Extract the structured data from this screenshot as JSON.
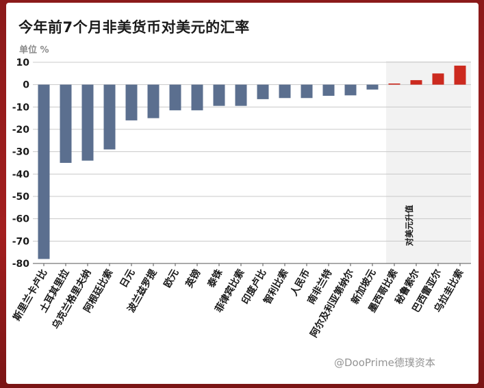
{
  "title": "今年前7个月非美货币对美元的汇率",
  "unit_label": "单位 %",
  "annotation": "对美元升值",
  "watermark": "@DooPrime德璞资本",
  "colors": {
    "negative": "#5b6f8f",
    "positive": "#cc2a1f",
    "highlight_bg": "#f2f2f2",
    "grid": "#c8c8c8",
    "title": "#1a1a1a"
  },
  "chart_data": {
    "type": "bar",
    "title": "今年前7个月非美货币对美元的汇率",
    "ylabel": "单位 %",
    "ylim": [
      -80,
      10
    ],
    "yticks": [
      10,
      0,
      -10,
      -20,
      -30,
      -40,
      -50,
      -60,
      -70,
      -80
    ],
    "grid": true,
    "categories": [
      "斯里兰卡卢比",
      "土耳其里拉",
      "乌克兰格里夫纳",
      "阿根廷比索",
      "日元",
      "波兰兹罗提",
      "欧元",
      "英镑",
      "泰铢",
      "菲律宾比索",
      "印度卢比",
      "智利比索",
      "人民币",
      "南非兰特",
      "阿尔及利亚第纳尔",
      "新加坡元",
      "墨西哥比索",
      "秘鲁索尔",
      "巴西雷亚尔",
      "乌拉圭比索"
    ],
    "values": [
      -78,
      -35,
      -34,
      -29,
      -16,
      -15,
      -11.5,
      -11.5,
      -9.5,
      -9.5,
      -6.5,
      -6,
      -6,
      -5,
      -4.8,
      -2.2,
      0.5,
      2,
      5,
      8.5
    ]
  }
}
